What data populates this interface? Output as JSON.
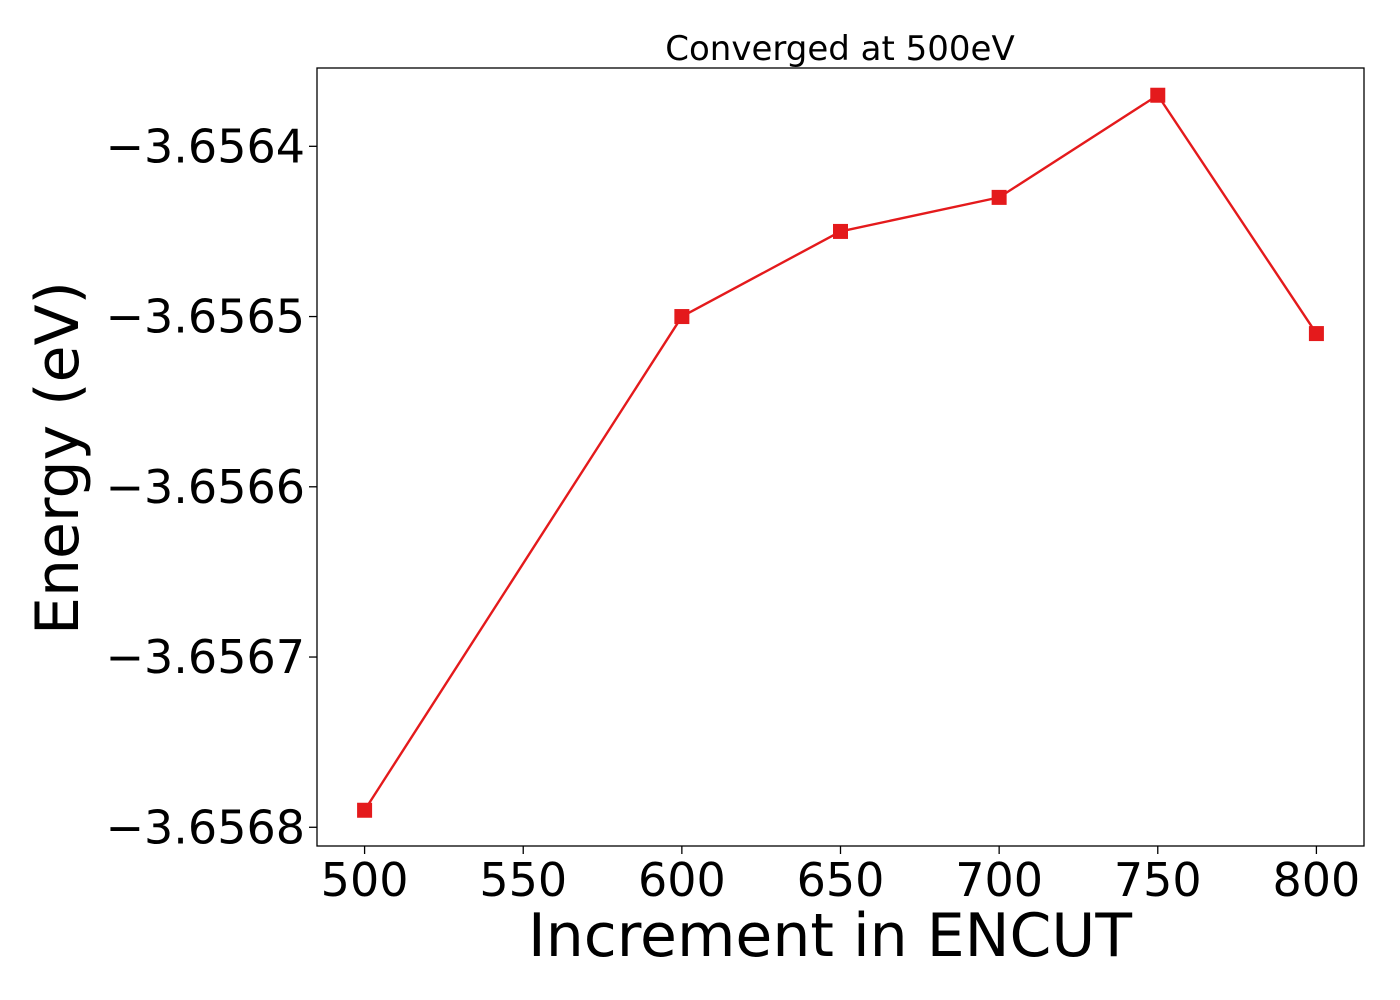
{
  "chart_data": {
    "type": "line",
    "title": "Converged at 500eV",
    "xlabel": "Increment in ENCUT",
    "ylabel": "Energy (eV)",
    "x": [
      500,
      600,
      650,
      700,
      750,
      800
    ],
    "series": [
      {
        "values": [
          -3.65679,
          -3.6565,
          -3.65645,
          -3.65643,
          -3.65637,
          -3.65651
        ],
        "color": "#e41a1c",
        "marker": "square"
      }
    ],
    "xlim": [
      485,
      815
    ],
    "ylim": [
      -3.656811,
      -3.656354
    ],
    "xticks": [
      500,
      550,
      600,
      650,
      700,
      750,
      800
    ],
    "xtick_labels": [
      "500",
      "550",
      "600",
      "650",
      "700",
      "750",
      "800"
    ],
    "yticks": [
      -3.6568,
      -3.6567,
      -3.6566,
      -3.6565,
      -3.6564
    ],
    "ytick_labels": [
      "−3.6568",
      "−3.6567",
      "−3.6566",
      "−3.6565",
      "−3.6564"
    ],
    "grid": false,
    "legend": false
  }
}
